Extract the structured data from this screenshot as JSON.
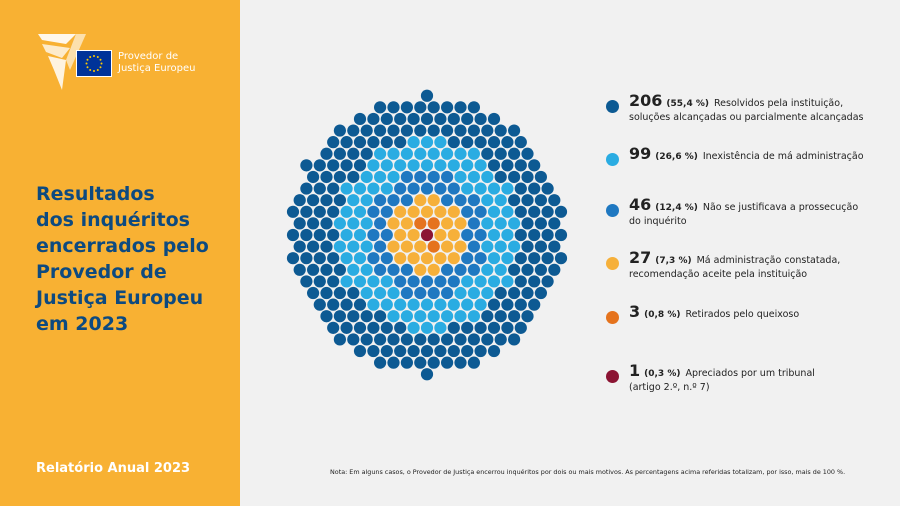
{
  "header": {
    "org_line1": "Provedor de",
    "org_line2": "Justiça Europeu",
    "title_lines": [
      "Resultados",
      "dos inquéritos",
      "encerrados pelo",
      "Provedor de",
      "Justiça Europeu",
      "em 2023"
    ],
    "report": "Relatório Anual 2023"
  },
  "colors": {
    "sidebar": "#f8b133",
    "heading": "#0d4a80",
    "flag": "#003399"
  },
  "chart_data": {
    "type": "pie",
    "title": "",
    "categories": [
      "Resolvidos pela instituição, soluções alcançadas ou parcialmente alcançadas",
      "Inexistência de má administração",
      "Não se justificava a prossecução do inquérito",
      "Má administração constatada, recomendação aceite pela instituição",
      "Retirados pelo queixoso",
      "Apreciados por um tribunal (artigo 2.º, n.º 7)"
    ],
    "values": [
      206,
      99,
      46,
      27,
      3,
      1
    ],
    "percentages": [
      "55,4 %",
      "26,6 %",
      "12,4 %",
      "7,3 %",
      "0,8 %",
      "0,3 %"
    ],
    "colors": [
      "#0d5a93",
      "#2aace2",
      "#1f78c1",
      "#f6b03a",
      "#e5731d",
      "#8b1433"
    ],
    "legend": "right"
  },
  "legend_items": [
    {
      "count": "206",
      "pct": "(55,4 %)",
      "line1": "Resolvidos pela instituição,",
      "line2": "soluções alcançadas ou parcialmente alcançadas"
    },
    {
      "count": "99",
      "pct": "(26,6 %)",
      "line1": "Inexistência de má administração",
      "line2": ""
    },
    {
      "count": "46",
      "pct": "(12,4 %)",
      "line1": "Não se justificava a prossecução",
      "line2": "do inquérito"
    },
    {
      "count": "27",
      "pct": "(7,3 %)",
      "line1": "Má administração constatada,",
      "line2": "recomendação aceite pela instituição"
    },
    {
      "count": "3",
      "pct": "(0,8 %)",
      "line1": "Retirados pelo queixoso",
      "line2": ""
    },
    {
      "count": "1",
      "pct": "(0,3 %)",
      "line1": "Apreciados por um tribunal",
      "line2": "(artigo 2.º, n.º 7)"
    }
  ],
  "footnote": "Nota: Em alguns casos, o Provedor de Justiça encerrou inquéritos por dois ou mais motivos. As percentagens acima referidas totalizam, por isso, mais de 100 %."
}
